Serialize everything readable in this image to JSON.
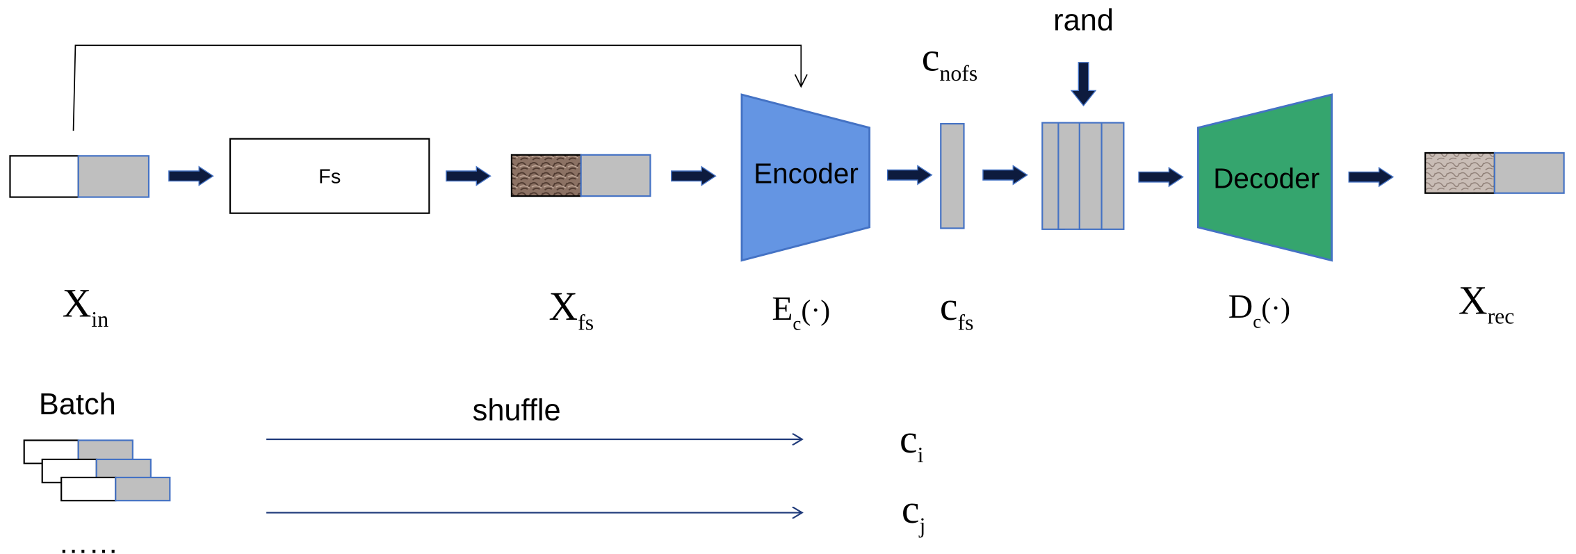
{
  "blocks": {
    "fs": "Fs",
    "encoder": "Encoder",
    "decoder": "Decoder"
  },
  "rand": "rand",
  "batch": "Batch",
  "shuffle": "shuffle",
  "ellipsis": "……",
  "labels": [
    {
      "main": "X",
      "sub": "in"
    },
    {
      "main": "X",
      "sub": "fs"
    },
    {
      "main": "E",
      "sub": "c",
      "suffix": "(·)"
    },
    {
      "main": "c",
      "sub": "fs"
    },
    {
      "main": "D",
      "sub": "c",
      "suffix": "(·)"
    },
    {
      "main": "X",
      "sub": "rec"
    },
    {
      "main": "c",
      "sub": "nofs"
    },
    {
      "main": "c",
      "sub": "i"
    },
    {
      "main": "c",
      "sub": "j"
    }
  ]
}
